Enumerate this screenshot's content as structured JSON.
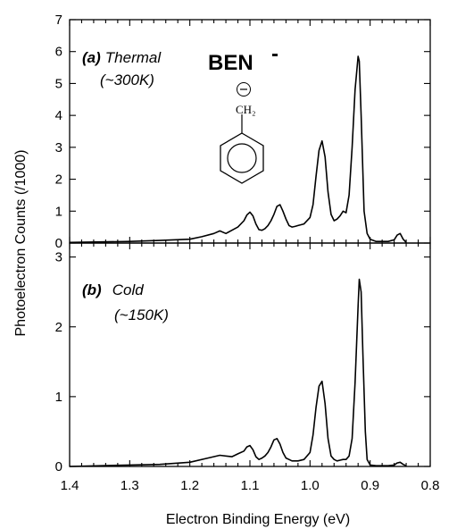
{
  "chart_data": [
    {
      "type": "line",
      "panel_label_letter": "(a)",
      "panel_label_text": "Thermal",
      "temperature_label": "(~300K)",
      "molecule_label": "BEN",
      "charge_label": "-",
      "substituent_label": "CH₂",
      "ylabel": "Photoelectron Counts (/1000)",
      "xlim": [
        1.4,
        0.8
      ],
      "ylim": [
        0,
        7
      ],
      "yticks": [
        "0",
        "1",
        "2",
        "3",
        "4",
        "5",
        "6",
        "7"
      ],
      "series": [
        {
          "x": [
            1.4,
            1.3,
            1.25,
            1.2,
            1.18,
            1.16,
            1.15,
            1.14,
            1.13,
            1.12,
            1.11,
            1.105,
            1.1,
            1.095,
            1.09,
            1.085,
            1.08,
            1.075,
            1.07,
            1.065,
            1.06,
            1.055,
            1.05,
            1.045,
            1.04,
            1.035,
            1.03,
            1.025,
            1.02,
            1.01,
            1.0,
            0.995,
            0.99,
            0.985,
            0.98,
            0.975,
            0.97,
            0.965,
            0.96,
            0.955,
            0.95,
            0.945,
            0.94,
            0.935,
            0.93,
            0.925,
            0.92,
            0.918,
            0.915,
            0.91,
            0.905,
            0.9,
            0.89,
            0.88,
            0.87,
            0.86,
            0.855,
            0.85,
            0.845,
            0.84
          ],
          "y": [
            0.02,
            0.05,
            0.08,
            0.12,
            0.2,
            0.3,
            0.38,
            0.3,
            0.4,
            0.5,
            0.7,
            0.88,
            0.97,
            0.85,
            0.6,
            0.42,
            0.4,
            0.45,
            0.55,
            0.7,
            0.9,
            1.15,
            1.2,
            1.0,
            0.75,
            0.55,
            0.5,
            0.52,
            0.55,
            0.6,
            0.8,
            1.2,
            2.1,
            2.9,
            3.2,
            2.7,
            1.6,
            0.9,
            0.7,
            0.75,
            0.85,
            1.0,
            0.95,
            1.5,
            3.0,
            4.8,
            5.85,
            5.7,
            4.0,
            1.0,
            0.3,
            0.12,
            0.05,
            0.05,
            0.05,
            0.1,
            0.25,
            0.3,
            0.12,
            0.02
          ]
        }
      ]
    },
    {
      "type": "line",
      "panel_label_letter": "(b)",
      "panel_label_text": "Cold",
      "temperature_label": "(~150K)",
      "xlabel": "Electron Binding Energy (eV)",
      "xlim": [
        1.4,
        0.8
      ],
      "ylim": [
        0,
        3.2
      ],
      "yticks": [
        "0",
        "1",
        "2",
        "3"
      ],
      "xticks": [
        "1.4",
        "1.3",
        "1.2",
        "1.1",
        "1.0",
        "0.9",
        "0.8"
      ],
      "series": [
        {
          "x": [
            1.4,
            1.3,
            1.25,
            1.2,
            1.17,
            1.15,
            1.13,
            1.12,
            1.11,
            1.105,
            1.1,
            1.095,
            1.09,
            1.085,
            1.08,
            1.075,
            1.07,
            1.065,
            1.06,
            1.055,
            1.05,
            1.045,
            1.04,
            1.035,
            1.03,
            1.02,
            1.01,
            1.0,
            0.995,
            0.99,
            0.985,
            0.98,
            0.975,
            0.97,
            0.965,
            0.96,
            0.955,
            0.95,
            0.945,
            0.94,
            0.935,
            0.93,
            0.925,
            0.92,
            0.918,
            0.915,
            0.912,
            0.908,
            0.905,
            0.9,
            0.89,
            0.87,
            0.86,
            0.855,
            0.85,
            0.845,
            0.84
          ],
          "y": [
            0.0,
            0.02,
            0.03,
            0.06,
            0.12,
            0.16,
            0.14,
            0.18,
            0.22,
            0.28,
            0.3,
            0.24,
            0.14,
            0.1,
            0.12,
            0.15,
            0.2,
            0.28,
            0.38,
            0.4,
            0.32,
            0.2,
            0.12,
            0.1,
            0.08,
            0.08,
            0.1,
            0.2,
            0.45,
            0.85,
            1.15,
            1.22,
            0.9,
            0.4,
            0.15,
            0.1,
            0.08,
            0.09,
            0.1,
            0.1,
            0.15,
            0.4,
            1.2,
            2.3,
            2.68,
            2.5,
            1.6,
            0.5,
            0.1,
            0.02,
            0.01,
            0.01,
            0.02,
            0.05,
            0.06,
            0.03,
            0.01
          ]
        }
      ]
    }
  ]
}
